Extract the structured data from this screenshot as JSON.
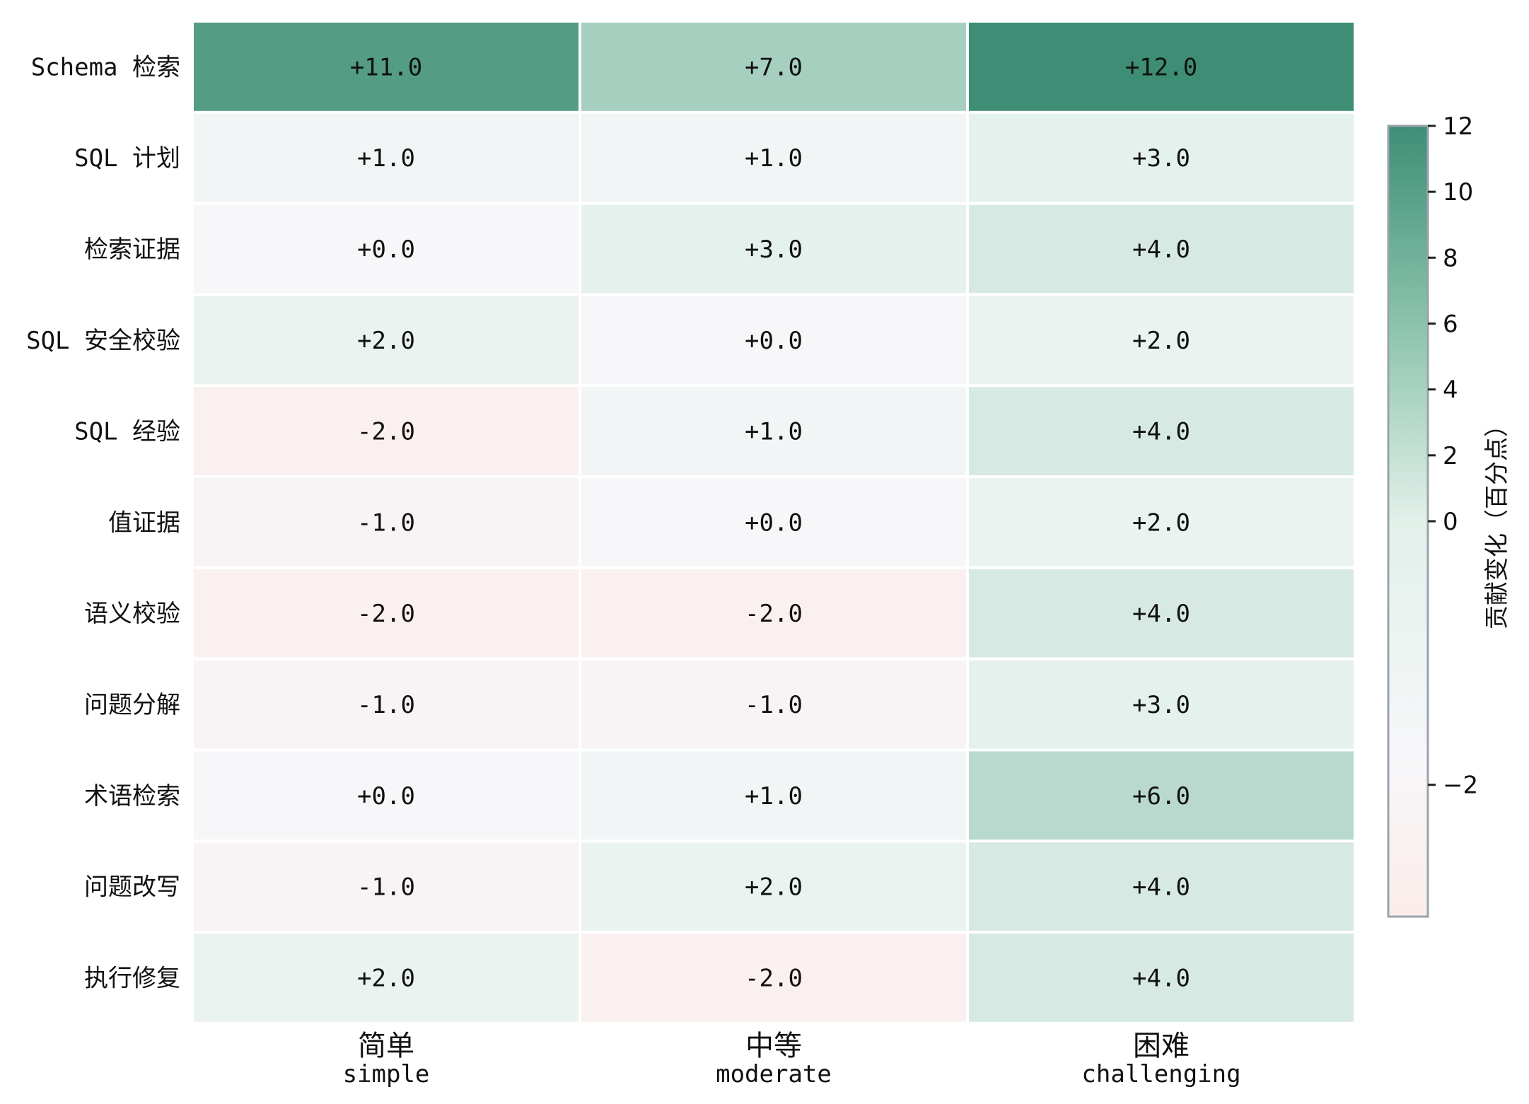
{
  "chart_data": {
    "type": "heatmap",
    "rows": [
      "Schema 检索",
      "SQL 计划",
      "检索证据",
      "SQL 安全校验",
      "SQL 经验",
      "值证据",
      "语义校验",
      "问题分解",
      "术语检索",
      "问题改写",
      "执行修复"
    ],
    "columns": [
      {
        "label": "简单",
        "sub": "simple"
      },
      {
        "label": "中等",
        "sub": "moderate"
      },
      {
        "label": "困难",
        "sub": "challenging"
      }
    ],
    "values": [
      [
        11,
        7,
        12
      ],
      [
        1,
        1,
        3
      ],
      [
        0,
        3,
        4
      ],
      [
        2,
        0,
        2
      ],
      [
        -2,
        1,
        4
      ],
      [
        -1,
        0,
        2
      ],
      [
        -2,
        -2,
        4
      ],
      [
        -1,
        -1,
        3
      ],
      [
        0,
        1,
        6
      ],
      [
        -1,
        2,
        4
      ],
      [
        2,
        -2,
        4
      ]
    ],
    "cell_labels": [
      [
        "+11.0",
        "+7.0",
        "+12.0"
      ],
      [
        "+1.0",
        "+1.0",
        "+3.0"
      ],
      [
        "+0.0",
        "+3.0",
        "+4.0"
      ],
      [
        "+2.0",
        "+0.0",
        "+2.0"
      ],
      [
        "-2.0",
        "+1.0",
        "+4.0"
      ],
      [
        "-1.0",
        "+0.0",
        "+2.0"
      ],
      [
        "-2.0",
        "-2.0",
        "+4.0"
      ],
      [
        "-1.0",
        "-1.0",
        "+3.0"
      ],
      [
        "+0.0",
        "+1.0",
        "+6.0"
      ],
      [
        "-1.0",
        "+2.0",
        "+4.0"
      ],
      [
        "+2.0",
        "-2.0",
        "+4.0"
      ]
    ],
    "colorbar": {
      "label": "贡献变化（百分点）",
      "ticks": [
        12,
        10,
        8,
        6,
        4,
        2,
        0,
        -2
      ],
      "tick_labels": [
        "12",
        "10",
        "8",
        "6",
        "4",
        "2",
        "0",
        "−2"
      ],
      "range": [
        -3,
        12
      ],
      "center": 0,
      "colors": {
        "low": "#fbecea",
        "center": "#f7f7f9",
        "high": "#3e8e75"
      }
    }
  }
}
